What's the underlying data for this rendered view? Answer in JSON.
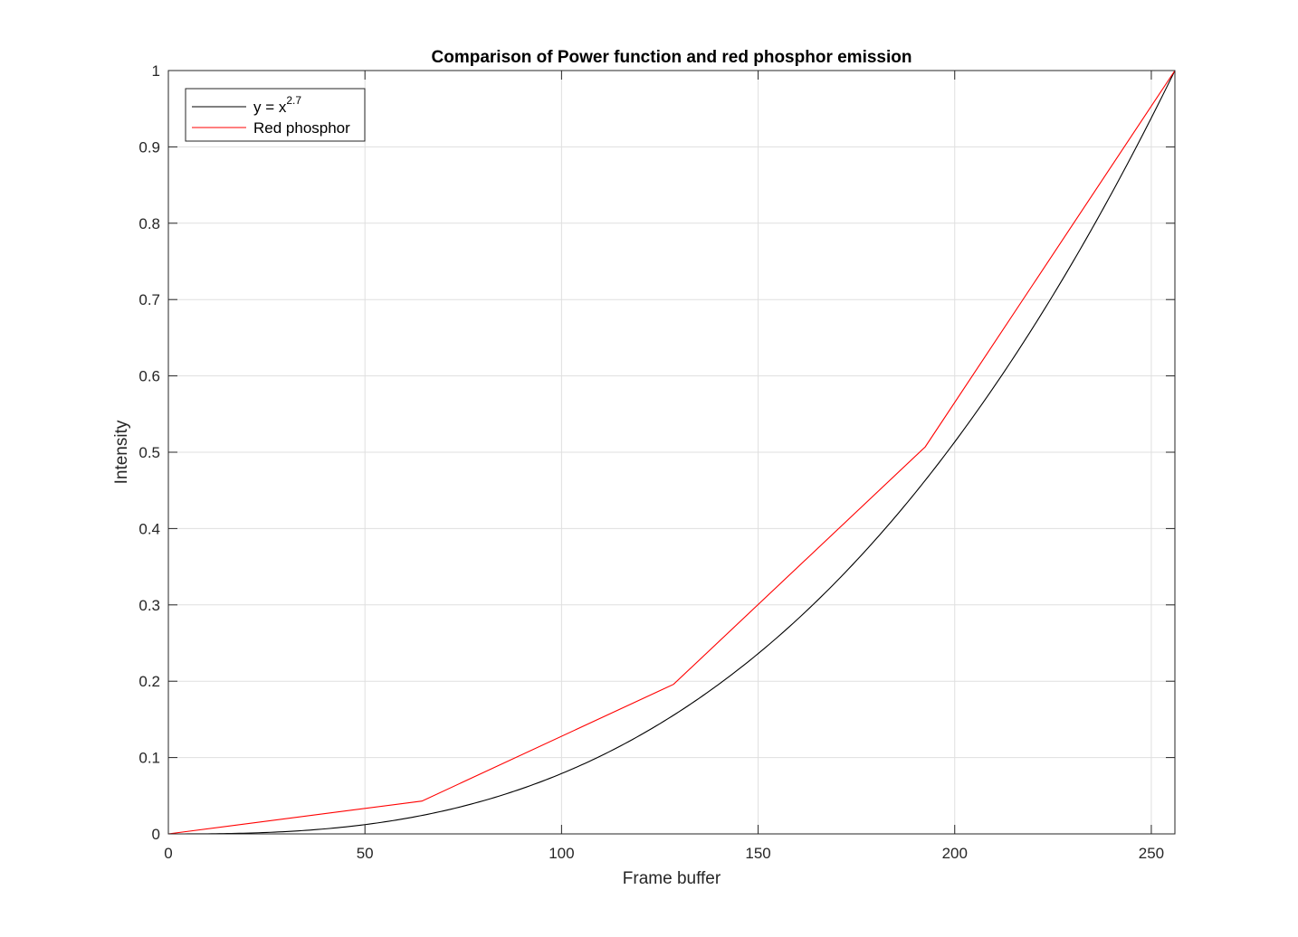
{
  "chart_data": {
    "type": "line",
    "title": "Comparison of Power function and red phosphor emission",
    "xlabel": "Frame buffer",
    "ylabel": "Intensity",
    "xlim": [
      0,
      256
    ],
    "ylim": [
      0,
      1
    ],
    "xticks": [
      0,
      50,
      100,
      150,
      200,
      250
    ],
    "yticks": [
      0,
      0.1,
      0.2,
      0.3,
      0.4,
      0.5,
      0.6,
      0.7,
      0.8,
      0.9,
      1
    ],
    "xtick_labels": [
      "0",
      "50",
      "100",
      "150",
      "200",
      "250"
    ],
    "ytick_labels": [
      "0",
      "0.1",
      "0.2",
      "0.3",
      "0.4",
      "0.5",
      "0.6",
      "0.7",
      "0.8",
      "0.9",
      "1"
    ],
    "grid": true,
    "legend_position": "top-left",
    "series": [
      {
        "name": "y = x^2.7",
        "name_base": "y = x",
        "name_exponent": "2.7",
        "color": "#000000",
        "exponent": 2.7,
        "x": [
          0,
          16,
          32,
          48,
          64,
          80,
          96,
          112,
          128,
          144,
          160,
          176,
          192,
          208,
          224,
          240,
          256
        ],
        "y": [
          0,
          0.0006,
          0.0036,
          0.0109,
          0.0237,
          0.0432,
          0.0708,
          0.1074,
          0.1539,
          0.2112,
          0.2812,
          0.364,
          0.4593,
          0.5702,
          0.697,
          0.84,
          1.0
        ]
      },
      {
        "name": "Red phosphor",
        "color": "#ff0000",
        "x": [
          0,
          64.5,
          128.5,
          192.5,
          256
        ],
        "y": [
          0,
          0.043,
          0.196,
          0.507,
          1.0
        ]
      }
    ]
  }
}
